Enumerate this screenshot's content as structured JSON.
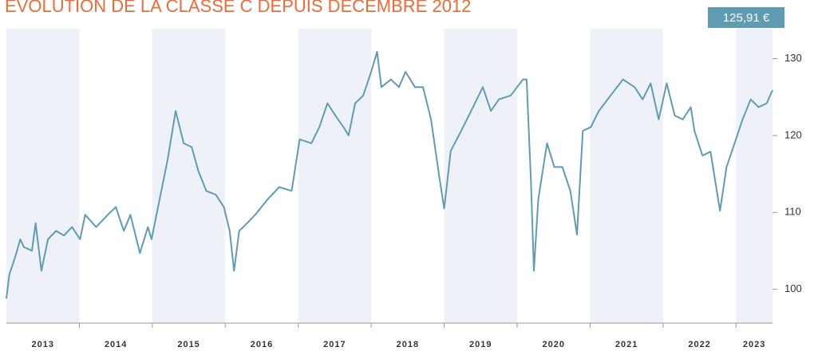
{
  "chart_data": {
    "type": "line",
    "title": "ÉVOLUTION DE LA CLASSE C DEPUIS DÉCEMBRE 2012",
    "annotation": "125,91 €",
    "categories": [
      "2013",
      "2014",
      "2015",
      "2016",
      "2017",
      "2018",
      "2019",
      "2020",
      "2021",
      "2022",
      "2023"
    ],
    "xlim": [
      2013,
      2023.5
    ],
    "xticks": [
      2014,
      2015,
      2016,
      2017,
      2018,
      2019,
      2020,
      2021,
      2022,
      2023
    ],
    "ylim": [
      95.6,
      133.9
    ],
    "yticks": [
      100,
      110,
      120,
      130
    ],
    "band_color": "#eef2f8",
    "series": [
      {
        "color": "#5f9cb3",
        "x": [
          2013.0,
          2013.04,
          2013.13,
          2013.19,
          2013.24,
          2013.35,
          2013.4,
          2013.48,
          2013.57,
          2013.68,
          2013.79,
          2013.9,
          2014.01,
          2014.08,
          2014.23,
          2014.39,
          2014.5,
          2014.61,
          2014.7,
          2014.83,
          2014.94,
          2014.99,
          2015.1,
          2015.21,
          2015.32,
          2015.43,
          2015.54,
          2015.63,
          2015.74,
          2015.87,
          2015.98,
          2016.06,
          2016.12,
          2016.19,
          2016.3,
          2016.41,
          2016.58,
          2016.74,
          2016.91,
          2017.02,
          2017.18,
          2017.29,
          2017.4,
          2017.51,
          2017.62,
          2017.69,
          2017.78,
          2017.89,
          2018.0,
          2018.08,
          2018.14,
          2018.27,
          2018.38,
          2018.47,
          2018.6,
          2018.71,
          2018.82,
          2018.93,
          2019.0,
          2019.09,
          2019.2,
          2019.37,
          2019.53,
          2019.64,
          2019.75,
          2019.91,
          2020.08,
          2020.13,
          2020.19,
          2020.23,
          2020.29,
          2020.41,
          2020.51,
          2020.62,
          2020.73,
          2020.82,
          2020.9,
          2021.01,
          2021.12,
          2021.28,
          2021.45,
          2021.61,
          2021.72,
          2021.83,
          2021.94,
          2022.05,
          2022.16,
          2022.27,
          2022.38,
          2022.43,
          2022.54,
          2022.65,
          2022.78,
          2022.87,
          2022.98,
          2023.09,
          2023.2,
          2023.31,
          2023.42,
          2023.5
        ],
        "values": [
          98.8,
          101.9,
          104.5,
          106.5,
          105.5,
          105,
          108.6,
          102.4,
          106.5,
          107.6,
          107,
          108.1,
          106.5,
          109.7,
          108.1,
          109.7,
          110.7,
          107.6,
          109.7,
          104.7,
          108.1,
          106.5,
          111.7,
          116.9,
          123.2,
          119,
          118.5,
          115.4,
          112.8,
          112.3,
          110.7,
          107.6,
          102.4,
          107.6,
          108.6,
          109.7,
          111.7,
          113.3,
          112.8,
          119.5,
          119,
          121.1,
          124.2,
          122.6,
          121.1,
          120,
          124.2,
          125.2,
          128.3,
          130.9,
          126.3,
          127.3,
          126.3,
          128.3,
          126.3,
          126.3,
          122.1,
          114.8,
          110.5,
          118,
          120,
          123.2,
          126.3,
          123.2,
          124.7,
          125.2,
          127.3,
          127.3,
          113.8,
          102.4,
          111.7,
          119,
          115.9,
          115.9,
          112.8,
          107.1,
          120.6,
          121.1,
          123.2,
          125.2,
          127.3,
          126.3,
          124.7,
          126.8,
          122.1,
          126.8,
          122.6,
          122.1,
          123.7,
          120.6,
          117.4,
          117.9,
          110.2,
          115.9,
          119,
          122.1,
          124.7,
          123.7,
          124.2,
          125.91
        ]
      }
    ]
  }
}
